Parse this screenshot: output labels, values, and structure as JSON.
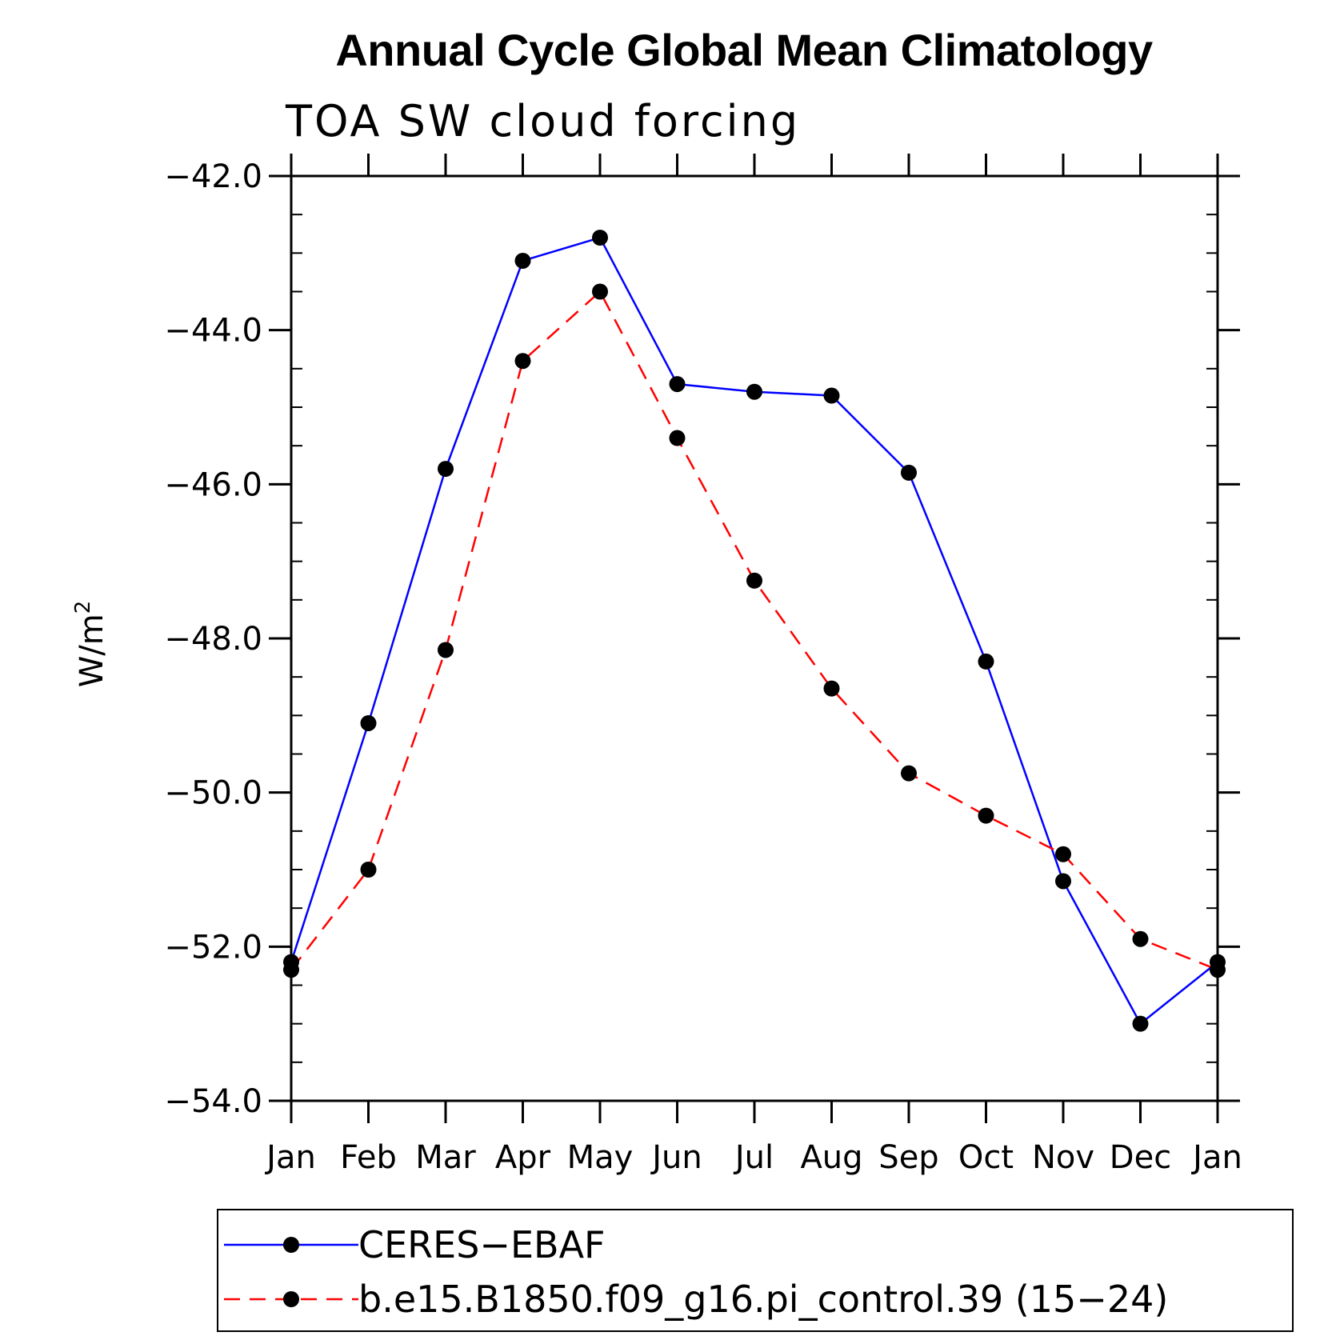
{
  "chart_data": {
    "type": "line",
    "title": "Annual Cycle Global Mean Climatology",
    "subtitle": "TOA SW cloud forcing",
    "ylabel": "W/m",
    "ylabel_superscript": "2",
    "ylim": [
      -54.0,
      -42.0
    ],
    "yticks": [
      -42.0,
      -44.0,
      -46.0,
      -48.0,
      -50.0,
      -52.0,
      -54.0
    ],
    "ytick_labels": [
      "−42.0",
      "−44.0",
      "−46.0",
      "−48.0",
      "−50.0",
      "−52.0",
      "−54.0"
    ],
    "categories": [
      "Jan",
      "Feb",
      "Mar",
      "Apr",
      "May",
      "Jun",
      "Jul",
      "Aug",
      "Sep",
      "Oct",
      "Nov",
      "Dec",
      "Jan"
    ],
    "series": [
      {
        "name": "CERES−EBAF",
        "color": "#0000ff",
        "dash": "solid",
        "values": [
          -52.2,
          -49.1,
          -45.8,
          -43.1,
          -42.8,
          -44.7,
          -44.8,
          -44.85,
          -45.85,
          -48.3,
          -51.15,
          -53.0,
          -52.2
        ]
      },
      {
        "name": "b.e15.B1850.f09_g16.pi_control.39 (15−24)",
        "color": "#ff0000",
        "dash": "dashed",
        "values": [
          -52.3,
          -51.0,
          -48.15,
          -44.4,
          -43.5,
          -45.4,
          -47.25,
          -48.65,
          -49.75,
          -50.3,
          -50.8,
          -51.9,
          -52.3
        ]
      }
    ],
    "marker": "filled-circle",
    "marker_color": "#000000",
    "legend_position": "bottom",
    "grid": false
  }
}
